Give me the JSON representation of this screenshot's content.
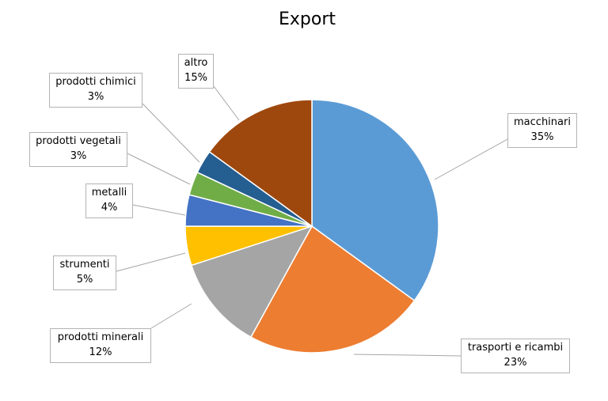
{
  "chart_data": {
    "type": "pie",
    "title": "Export",
    "categories": [
      "macchinari",
      "trasporti e ricambi",
      "prodotti minerali",
      "strumenti",
      "metalli",
      "prodotti vegetali",
      "prodotti chimici",
      "altro"
    ],
    "values": [
      35,
      23,
      12,
      5,
      4,
      3,
      3,
      15
    ],
    "value_labels": [
      "35%",
      "23%",
      "12%",
      "5%",
      "4%",
      "3%",
      "3%",
      "15%"
    ],
    "colors": [
      "#5b9bd5",
      "#ed7d31",
      "#a5a5a5",
      "#ffc000",
      "#4472c4",
      "#70ad47",
      "#255e91",
      "#9e480e"
    ],
    "legend": "none",
    "grid": false
  }
}
